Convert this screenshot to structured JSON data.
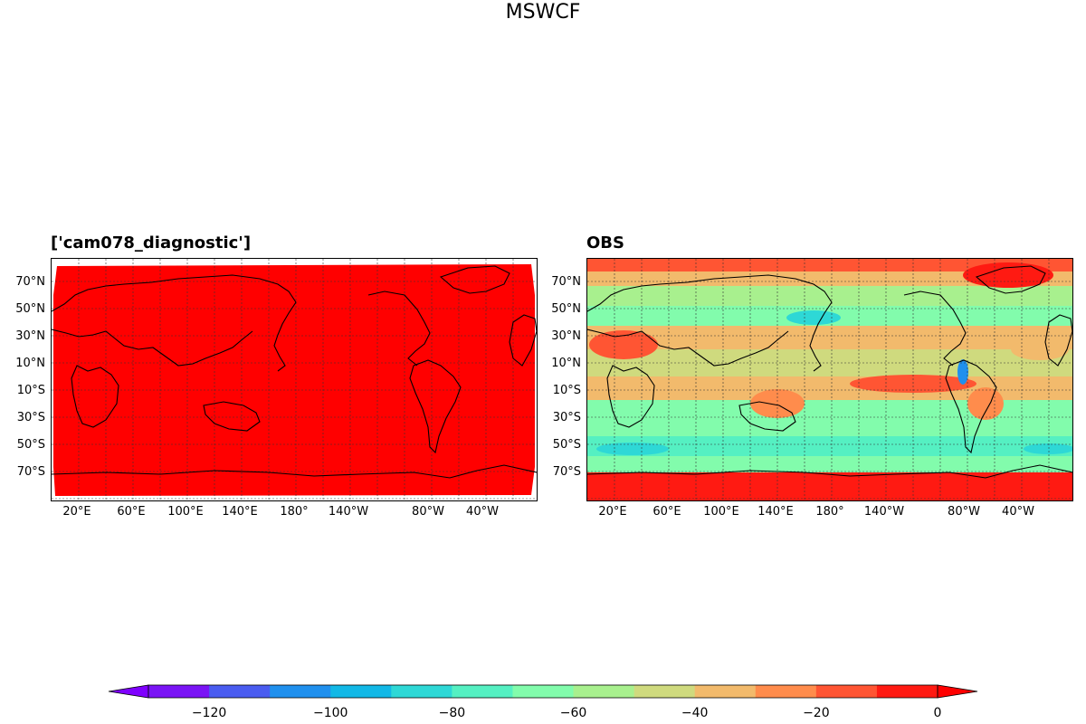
{
  "figure": {
    "title": "MSWCF"
  },
  "panels": [
    {
      "id": "model",
      "title": "['cam078_diagnostic']",
      "lat_ticks": [
        "70°N",
        "50°N",
        "30°N",
        "10°N",
        "10°S",
        "30°S",
        "50°S",
        "70°S"
      ],
      "lon_ticks": [
        "20°E",
        "60°E",
        "100°E",
        "140°E",
        "180°",
        "140°W",
        "80°W",
        "40°W"
      ]
    },
    {
      "id": "obs",
      "title": "OBS",
      "lat_ticks": [
        "70°N",
        "50°N",
        "30°N",
        "10°N",
        "10°S",
        "30°S",
        "50°S",
        "70°S"
      ],
      "lon_ticks": [
        "20°E",
        "60°E",
        "100°E",
        "140°E",
        "180°",
        "140°W",
        "80°W",
        "40°W"
      ]
    }
  ],
  "colorbar": {
    "levels": [
      -130,
      -120,
      -110,
      -100,
      -90,
      -80,
      -70,
      -60,
      -50,
      -40,
      -30,
      -20,
      -10,
      0
    ],
    "colors": [
      "#7a14f5",
      "#4a5cf0",
      "#2090ee",
      "#12b8e6",
      "#2ed8d6",
      "#55f0c2",
      "#82fcac",
      "#a8f08e",
      "#cfda7e",
      "#f2ba6c",
      "#ff8c4c",
      "#ff5533",
      "#ff1a12"
    ],
    "extend_min_color": "#7f00ff",
    "extend_max_color": "#ff0000",
    "tick_labels": [
      "−120",
      "−100",
      "−80",
      "−60",
      "−40",
      "−20",
      "0"
    ]
  }
}
